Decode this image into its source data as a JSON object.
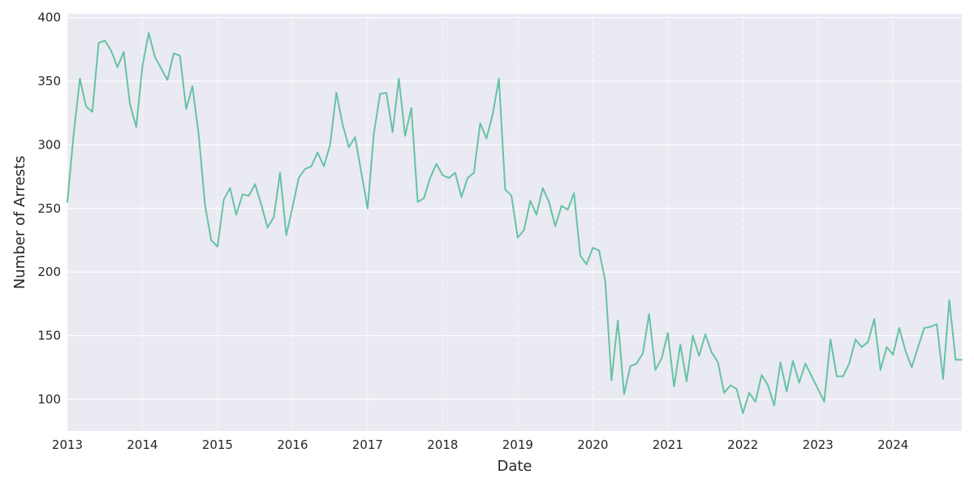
{
  "chart_data": {
    "type": "line",
    "title": "",
    "xlabel": "Date",
    "ylabel": "Number of Arrests",
    "x_tick_labels": [
      "2013",
      "2014",
      "2015",
      "2016",
      "2017",
      "2018",
      "2019",
      "2020",
      "2021",
      "2022",
      "2023",
      "2024"
    ],
    "y_tick_labels": [
      "100",
      "150",
      "200",
      "250",
      "300",
      "350",
      "400"
    ],
    "y_ticks": [
      100,
      150,
      200,
      250,
      300,
      350,
      400
    ],
    "xlim": [
      "2013-01",
      "2024-12"
    ],
    "ylim": [
      75,
      403
    ],
    "grid": true,
    "colors": {
      "line": "#66c2a5",
      "plot_background": "#eaeaf2",
      "grid": "#ffffff"
    },
    "series": [
      {
        "x": [
          "2013-01",
          "2013-02",
          "2013-03",
          "2013-04",
          "2013-05",
          "2013-06",
          "2013-07",
          "2013-08",
          "2013-09",
          "2013-10",
          "2013-11",
          "2013-12",
          "2014-01",
          "2014-02",
          "2014-03",
          "2014-04",
          "2014-05",
          "2014-06",
          "2014-07",
          "2014-08",
          "2014-09",
          "2014-10",
          "2014-11",
          "2014-12",
          "2015-01",
          "2015-02",
          "2015-03",
          "2015-04",
          "2015-05",
          "2015-06",
          "2015-07",
          "2015-08",
          "2015-09",
          "2015-10",
          "2015-11",
          "2015-12",
          "2016-01",
          "2016-02",
          "2016-03",
          "2016-04",
          "2016-05",
          "2016-06",
          "2016-07",
          "2016-08",
          "2016-09",
          "2016-10",
          "2016-11",
          "2016-12",
          "2017-01",
          "2017-02",
          "2017-03",
          "2017-04",
          "2017-05",
          "2017-06",
          "2017-07",
          "2017-08",
          "2017-09",
          "2017-10",
          "2017-11",
          "2017-12",
          "2018-01",
          "2018-02",
          "2018-03",
          "2018-04",
          "2018-05",
          "2018-06",
          "2018-07",
          "2018-08",
          "2018-09",
          "2018-10",
          "2018-11",
          "2018-12",
          "2019-01",
          "2019-02",
          "2019-03",
          "2019-04",
          "2019-05",
          "2019-06",
          "2019-07",
          "2019-08",
          "2019-09",
          "2019-10",
          "2019-11",
          "2019-12",
          "2020-01",
          "2020-02",
          "2020-03",
          "2020-04",
          "2020-05",
          "2020-06",
          "2020-07",
          "2020-08",
          "2020-09",
          "2020-10",
          "2020-11",
          "2020-12",
          "2021-01",
          "2021-02",
          "2021-03",
          "2021-04",
          "2021-05",
          "2021-06",
          "2021-07",
          "2021-08",
          "2021-09",
          "2021-10",
          "2021-11",
          "2021-12",
          "2022-01",
          "2022-02",
          "2022-03",
          "2022-04",
          "2022-05",
          "2022-06",
          "2022-07",
          "2022-08",
          "2022-09",
          "2022-10",
          "2022-11",
          "2022-12",
          "2023-01",
          "2023-02",
          "2023-03",
          "2023-04",
          "2023-05",
          "2023-06",
          "2023-07",
          "2023-08",
          "2023-09",
          "2023-10",
          "2023-11",
          "2023-12",
          "2024-01",
          "2024-02",
          "2024-03",
          "2024-04",
          "2024-05",
          "2024-06",
          "2024-07",
          "2024-08",
          "2024-09",
          "2024-10",
          "2024-11",
          "2024-12"
        ],
        "values": [
          255,
          308,
          352,
          330,
          326,
          380,
          382,
          374,
          361,
          373,
          332,
          314,
          362,
          388,
          369,
          360,
          351,
          372,
          370,
          328,
          346,
          308,
          253,
          225,
          220,
          257,
          266,
          245,
          261,
          260,
          269,
          253,
          235,
          243,
          278,
          229,
          251,
          274,
          281,
          283,
          294,
          283,
          300,
          341,
          316,
          298,
          306,
          278,
          250,
          309,
          340,
          341,
          310,
          352,
          307,
          329,
          255,
          258,
          274,
          285,
          276,
          274,
          278,
          259,
          274,
          278,
          317,
          305,
          324,
          352,
          265,
          260,
          227,
          233,
          256,
          245,
          266,
          255,
          236,
          252,
          249,
          262,
          213,
          206,
          219,
          217,
          193,
          115,
          162,
          104,
          126,
          128,
          136,
          167,
          123,
          132,
          152,
          110,
          143,
          114,
          150,
          134,
          151,
          137,
          129,
          105,
          111,
          108,
          89,
          105,
          98,
          119,
          111,
          95,
          129,
          106,
          130,
          113,
          128,
          118,
          108,
          98,
          147,
          118,
          118,
          128,
          147,
          141,
          145,
          163,
          123,
          141,
          135,
          156,
          138,
          125,
          141,
          156,
          157,
          159,
          116,
          178,
          131,
          131
        ]
      }
    ]
  }
}
